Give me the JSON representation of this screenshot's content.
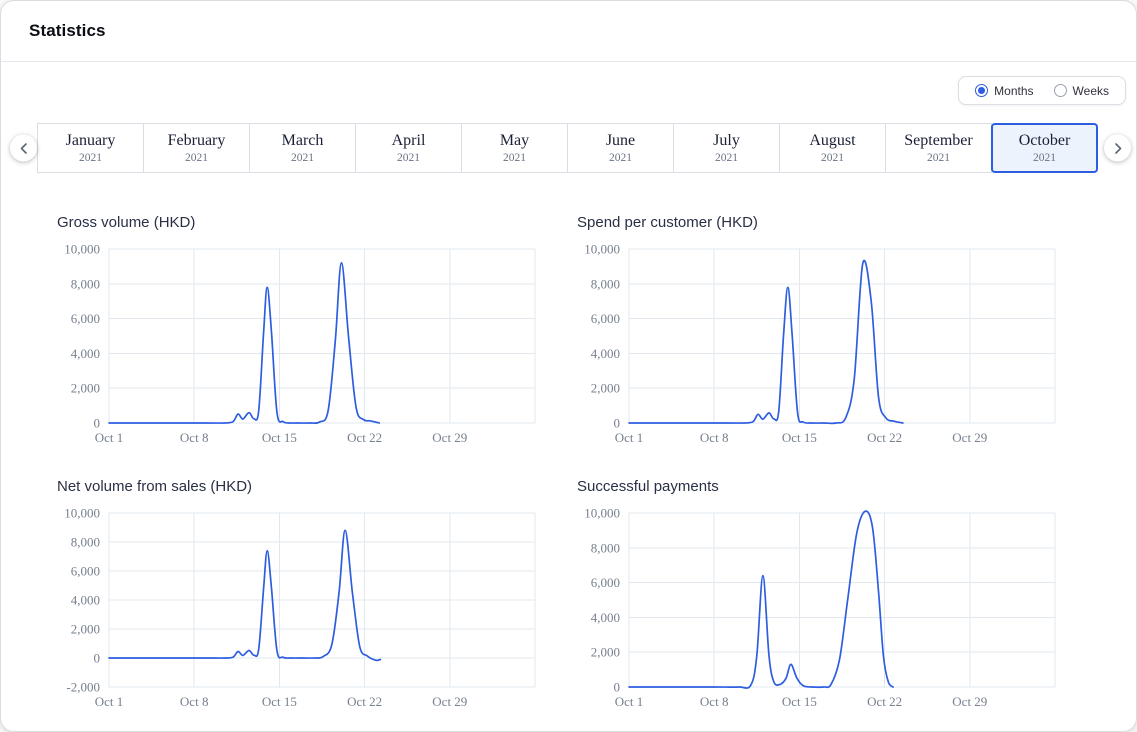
{
  "header": {
    "title": "Statistics"
  },
  "controls": {
    "period_toggle": {
      "options": [
        {
          "label": "Months",
          "selected": true
        },
        {
          "label": "Weeks",
          "selected": false
        }
      ]
    },
    "month_carousel": {
      "items": [
        {
          "month": "January",
          "year": "2021",
          "selected": false
        },
        {
          "month": "February",
          "year": "2021",
          "selected": false
        },
        {
          "month": "March",
          "year": "2021",
          "selected": false
        },
        {
          "month": "April",
          "year": "2021",
          "selected": false
        },
        {
          "month": "May",
          "year": "2021",
          "selected": false
        },
        {
          "month": "June",
          "year": "2021",
          "selected": false
        },
        {
          "month": "July",
          "year": "2021",
          "selected": false
        },
        {
          "month": "August",
          "year": "2021",
          "selected": false
        },
        {
          "month": "September",
          "year": "2021",
          "selected": false
        },
        {
          "month": "October",
          "year": "2021",
          "selected": true
        }
      ]
    }
  },
  "colors": {
    "accent": "#2d5de0",
    "line": "#2d5de0",
    "selected_month_bg": "#edf3fd",
    "grid": "#e3e8ee",
    "tick_text": "#76808f"
  },
  "chart_data": [
    {
      "type": "line",
      "title": "Gross volume (HKD)",
      "xlim": [
        1,
        36
      ],
      "ylim": [
        0,
        10000
      ],
      "yticks": [
        0,
        2000,
        4000,
        6000,
        8000,
        10000
      ],
      "vgrid": [
        1,
        8,
        15,
        22,
        29,
        36
      ],
      "xticks": [
        {
          "x": 1,
          "label": "Oct 1"
        },
        {
          "x": 8,
          "label": "Oct 8"
        },
        {
          "x": 15,
          "label": "Oct 15"
        },
        {
          "x": 22,
          "label": "Oct 22"
        },
        {
          "x": 29,
          "label": "Oct 29"
        }
      ],
      "points": [
        [
          1,
          0
        ],
        [
          4,
          0
        ],
        [
          7,
          0
        ],
        [
          9,
          0
        ],
        [
          10.5,
          0
        ],
        [
          11.2,
          80
        ],
        [
          11.6,
          520
        ],
        [
          12,
          230
        ],
        [
          12.5,
          600
        ],
        [
          12.9,
          250
        ],
        [
          13.3,
          700
        ],
        [
          13.7,
          5200
        ],
        [
          14,
          7800
        ],
        [
          14.35,
          5200
        ],
        [
          14.8,
          600
        ],
        [
          15.3,
          80
        ],
        [
          15.8,
          0
        ],
        [
          16.5,
          0
        ],
        [
          17.5,
          0
        ],
        [
          18.3,
          60
        ],
        [
          19,
          700
        ],
        [
          19.6,
          4800
        ],
        [
          20.1,
          9200
        ],
        [
          20.7,
          4800
        ],
        [
          21.3,
          900
        ],
        [
          21.9,
          200
        ],
        [
          22.5,
          120
        ],
        [
          23.2,
          0
        ]
      ]
    },
    {
      "type": "line",
      "title": "Spend per customer (HKD)",
      "xlim": [
        1,
        36
      ],
      "ylim": [
        0,
        10000
      ],
      "yticks": [
        0,
        2000,
        4000,
        6000,
        8000,
        10000
      ],
      "vgrid": [
        1,
        8,
        15,
        22,
        29,
        36
      ],
      "xticks": [
        {
          "x": 1,
          "label": "Oct 1"
        },
        {
          "x": 8,
          "label": "Oct 8"
        },
        {
          "x": 15,
          "label": "Oct 15"
        },
        {
          "x": 22,
          "label": "Oct 22"
        },
        {
          "x": 29,
          "label": "Oct 29"
        }
      ],
      "points": [
        [
          1,
          0
        ],
        [
          5,
          0
        ],
        [
          9,
          0
        ],
        [
          10.5,
          0
        ],
        [
          11.2,
          80
        ],
        [
          11.6,
          500
        ],
        [
          12,
          220
        ],
        [
          12.5,
          580
        ],
        [
          12.9,
          240
        ],
        [
          13.3,
          650
        ],
        [
          13.7,
          5100
        ],
        [
          14.05,
          7800
        ],
        [
          14.4,
          5100
        ],
        [
          14.85,
          600
        ],
        [
          15.3,
          60
        ],
        [
          16,
          0
        ],
        [
          17,
          0
        ],
        [
          18,
          0
        ],
        [
          18.8,
          300
        ],
        [
          19.5,
          2500
        ],
        [
          20.2,
          9150
        ],
        [
          20.9,
          7000
        ],
        [
          21.5,
          1500
        ],
        [
          22.1,
          300
        ],
        [
          22.8,
          100
        ],
        [
          23.5,
          0
        ]
      ]
    },
    {
      "type": "line",
      "title": "Net volume from sales (HKD)",
      "xlim": [
        1,
        36
      ],
      "ylim": [
        -2000,
        10000
      ],
      "yticks": [
        -2000,
        0,
        2000,
        4000,
        6000,
        8000,
        10000
      ],
      "vgrid": [
        1,
        8,
        15,
        22,
        29,
        36
      ],
      "xticks": [
        {
          "x": 1,
          "label": "Oct 1"
        },
        {
          "x": 8,
          "label": "Oct 8"
        },
        {
          "x": 15,
          "label": "Oct 15"
        },
        {
          "x": 22,
          "label": "Oct 22"
        },
        {
          "x": 29,
          "label": "Oct 29"
        }
      ],
      "points": [
        [
          1,
          0
        ],
        [
          5,
          0
        ],
        [
          9,
          0
        ],
        [
          10.5,
          0
        ],
        [
          11.2,
          60
        ],
        [
          11.6,
          450
        ],
        [
          12,
          180
        ],
        [
          12.5,
          520
        ],
        [
          12.9,
          200
        ],
        [
          13.3,
          600
        ],
        [
          13.7,
          4800
        ],
        [
          14,
          7400
        ],
        [
          14.35,
          4800
        ],
        [
          14.8,
          500
        ],
        [
          15.3,
          50
        ],
        [
          16,
          0
        ],
        [
          17,
          0
        ],
        [
          18,
          0
        ],
        [
          18.6,
          100
        ],
        [
          19.3,
          900
        ],
        [
          19.9,
          4500
        ],
        [
          20.4,
          8800
        ],
        [
          21,
          4500
        ],
        [
          21.6,
          800
        ],
        [
          22.2,
          150
        ],
        [
          22.9,
          -150
        ],
        [
          23.3,
          -100
        ]
      ]
    },
    {
      "type": "line",
      "title": "Successful payments",
      "xlim": [
        1,
        36
      ],
      "ylim": [
        0,
        10000
      ],
      "yticks": [
        0,
        2000,
        4000,
        6000,
        8000,
        10000
      ],
      "vgrid": [
        1,
        8,
        15,
        22,
        29,
        36
      ],
      "xticks": [
        {
          "x": 1,
          "label": "Oct 1"
        },
        {
          "x": 8,
          "label": "Oct 8"
        },
        {
          "x": 15,
          "label": "Oct 15"
        },
        {
          "x": 22,
          "label": "Oct 22"
        },
        {
          "x": 29,
          "label": "Oct 29"
        }
      ],
      "points": [
        [
          1,
          0
        ],
        [
          5,
          0
        ],
        [
          8,
          0
        ],
        [
          10,
          0
        ],
        [
          11,
          100
        ],
        [
          11.5,
          1800
        ],
        [
          12,
          6400
        ],
        [
          12.5,
          1800
        ],
        [
          12.9,
          300
        ],
        [
          13.4,
          150
        ],
        [
          13.9,
          500
        ],
        [
          14.3,
          1300
        ],
        [
          14.8,
          500
        ],
        [
          15.3,
          80
        ],
        [
          16,
          0
        ],
        [
          17,
          0
        ],
        [
          17.6,
          150
        ],
        [
          18.3,
          1600
        ],
        [
          19,
          5200
        ],
        [
          19.7,
          8800
        ],
        [
          20.4,
          10100
        ],
        [
          21,
          9200
        ],
        [
          21.5,
          5500
        ],
        [
          21.9,
          1800
        ],
        [
          22.3,
          300
        ],
        [
          22.7,
          0
        ]
      ]
    }
  ]
}
